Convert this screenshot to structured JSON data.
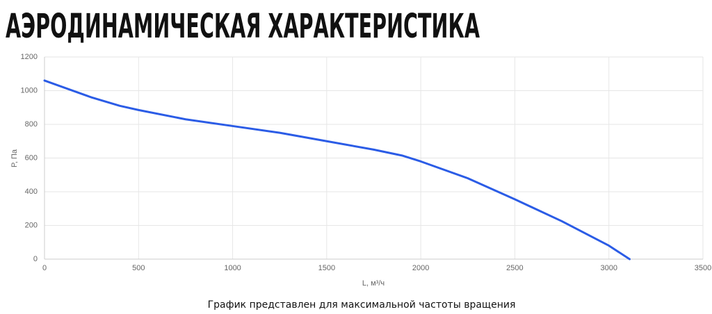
{
  "chart_data": {
    "type": "line",
    "title": "АЭРОДИНАМИЧЕСКАЯ ХАРАКТЕРИСТИКА",
    "x_label": "L, м³/ч",
    "y_label": "P, Па",
    "note": "График представлен для максимальной частоты вращения",
    "x": [
      0,
      250,
      400,
      500,
      750,
      1000,
      1250,
      1500,
      1750,
      1900,
      2000,
      2250,
      2500,
      2750,
      3000,
      3110
    ],
    "series": [
      {
        "name": "P",
        "color": "#2b5ce6",
        "values": [
          1060,
          960,
          910,
          885,
          830,
          790,
          750,
          700,
          650,
          615,
          580,
          480,
          355,
          225,
          80,
          0
        ]
      }
    ],
    "xlim": [
      0,
      3500
    ],
    "xticks": [
      0,
      500,
      1000,
      1500,
      2000,
      2500,
      3000,
      3500
    ],
    "ylim": [
      0,
      1200
    ],
    "yticks": [
      0,
      200,
      400,
      600,
      800,
      1000,
      1200
    ],
    "grid": true
  }
}
